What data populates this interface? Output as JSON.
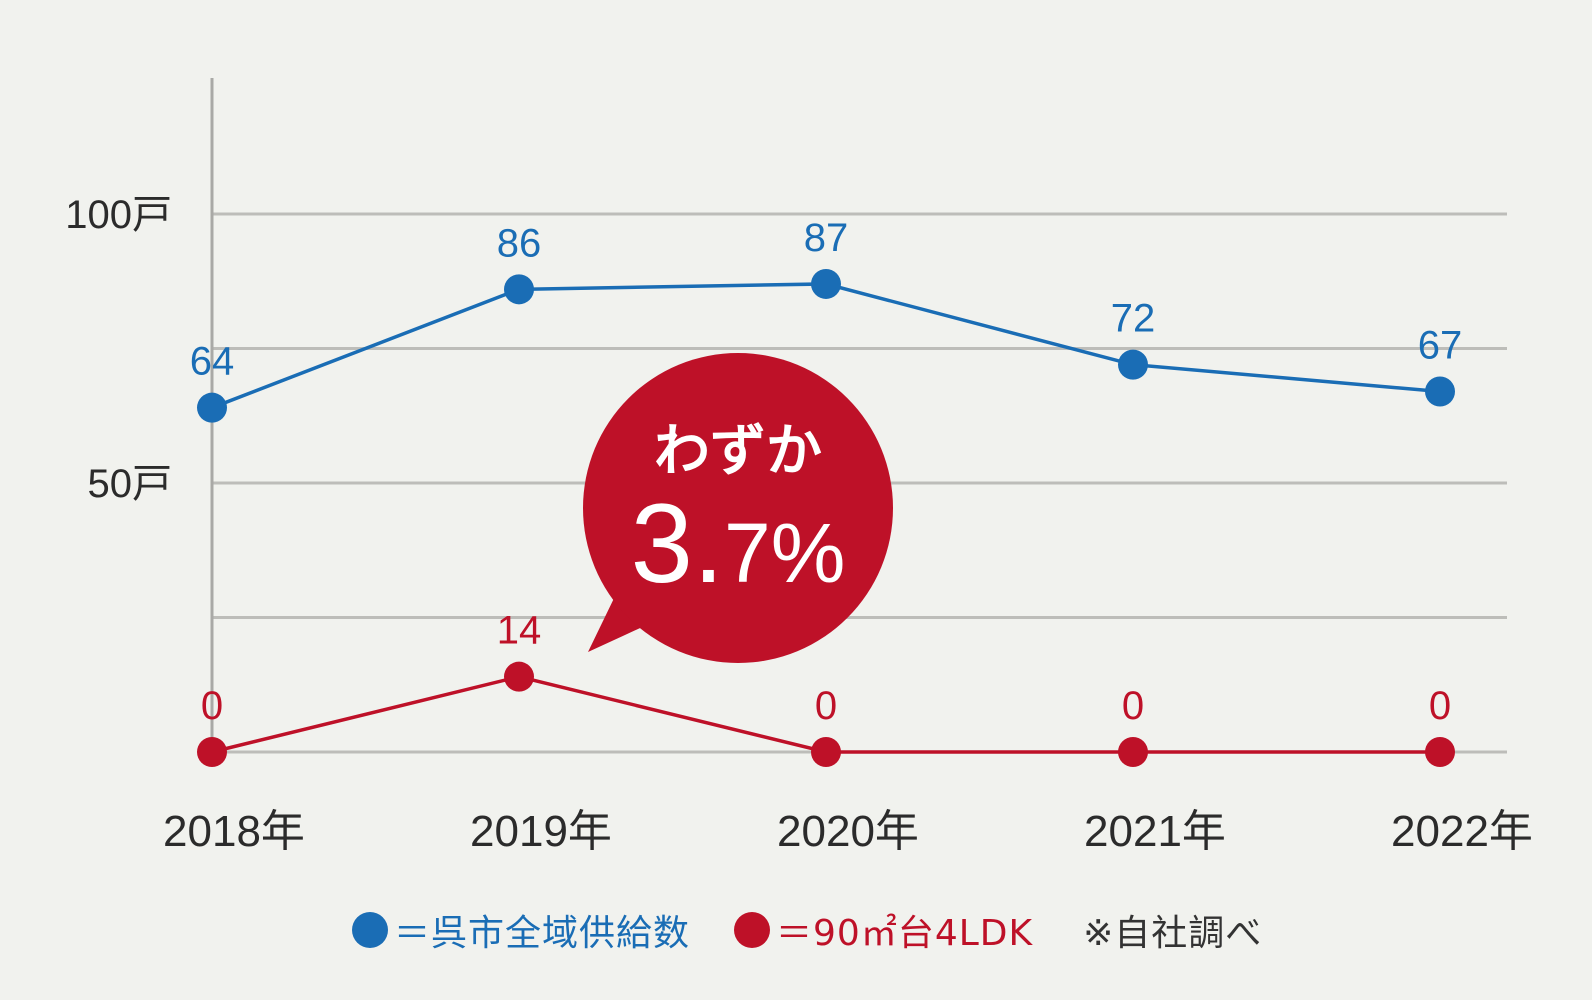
{
  "chart_data": {
    "type": "line",
    "categories": [
      "2018年",
      "2019年",
      "2020年",
      "2021年",
      "2022年"
    ],
    "series": [
      {
        "name": "呉市全域供給数",
        "values": [
          64,
          86,
          87,
          72,
          67
        ],
        "color": "#1a6db5"
      },
      {
        "name": "90㎡台4LDK",
        "values": [
          0,
          14,
          0,
          0,
          0
        ],
        "color": "#be1128"
      }
    ],
    "y_ticks": [
      {
        "value": 100,
        "label": "100戸"
      },
      {
        "value": 50,
        "label": "50戸"
      }
    ],
    "gridlines": [
      0,
      25,
      50,
      75,
      100
    ],
    "ylim": [
      0,
      125
    ],
    "grid": true,
    "legend_position": "bottom",
    "callout": {
      "line1": "わずか",
      "value": "3.",
      "unit": "7%",
      "color": "#be1128"
    }
  },
  "legend": {
    "items": [
      {
        "label": "＝呉市全域供給数",
        "color": "#1a6db5"
      },
      {
        "label": "＝90㎡台4LDK",
        "color": "#be1128"
      }
    ],
    "note": "※自社調べ"
  }
}
